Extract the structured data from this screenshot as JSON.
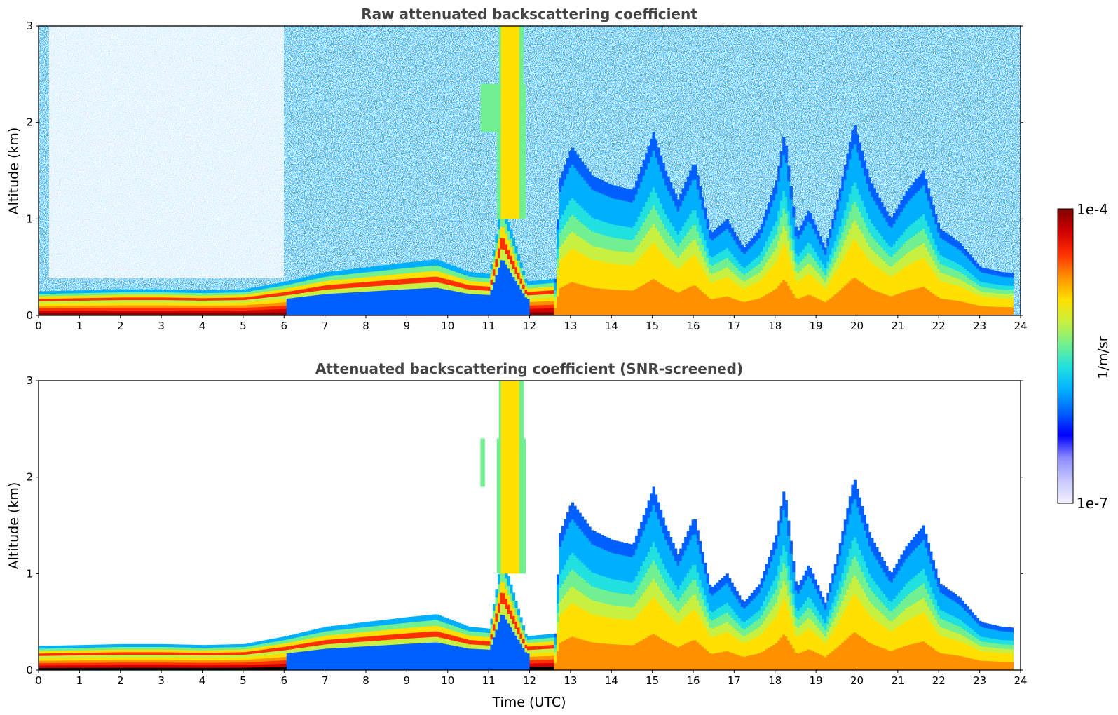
{
  "colors": {
    "colormap": [
      "#f0f0ff",
      "#c8c8ff",
      "#8c8cff",
      "#0000ff",
      "#0060ff",
      "#00b0ff",
      "#20e0e0",
      "#70f090",
      "#c8f040",
      "#ffe000",
      "#ff9000",
      "#ff3000",
      "#d00000",
      "#800000"
    ],
    "screened_saturation": "#000000"
  },
  "chart_data": [
    {
      "type": "heatmap",
      "title": "Raw attenuated backscattering coefficient",
      "xlabel": "",
      "ylabel": "Altitude (km)",
      "xlim": [
        0,
        24
      ],
      "ylim": [
        0,
        3
      ],
      "xticks": [
        "0",
        "1",
        "2",
        "3",
        "4",
        "5",
        "6",
        "7",
        "8",
        "9",
        "10",
        "11",
        "12",
        "13",
        "14",
        "15",
        "16",
        "17",
        "18",
        "19",
        "20",
        "21",
        "22",
        "23",
        "24"
      ],
      "yticks": [
        "0",
        "1",
        "2",
        "3"
      ],
      "boundary_layer_top_km": {
        "time_utc": [
          0,
          1,
          2,
          3,
          4,
          5,
          6,
          7,
          8,
          9,
          9.7,
          10.5,
          11,
          11.3,
          11.9,
          12.6,
          12.7,
          13,
          13.5,
          14,
          14.5,
          15,
          15.3,
          15.6,
          16,
          16.4,
          16.8,
          17.2,
          17.6,
          18,
          18.2,
          18.5,
          18.8,
          19.2,
          19.5,
          19.9,
          20.3,
          20.8,
          21.2,
          21.6,
          22,
          22.5,
          23,
          23.5,
          23.8
        ],
        "altitude_km": [
          0.25,
          0.26,
          0.27,
          0.27,
          0.26,
          0.27,
          0.35,
          0.45,
          0.5,
          0.55,
          0.58,
          0.45,
          0.43,
          1.2,
          0.35,
          0.38,
          1.4,
          1.75,
          1.45,
          1.35,
          1.3,
          1.9,
          1.5,
          1.2,
          1.6,
          0.85,
          1.0,
          0.7,
          0.9,
          1.4,
          1.9,
          0.85,
          1.1,
          0.7,
          1.2,
          2.0,
          1.4,
          1.0,
          1.3,
          1.5,
          0.9,
          0.75,
          0.5,
          0.45,
          0.44
        ]
      },
      "colorbar": {
        "label": "1/m/sr",
        "min_label": "1e-7",
        "max_label": "1e-4",
        "scale": "log"
      }
    },
    {
      "type": "heatmap",
      "title": "Attenuated backscattering coefficient (SNR-screened)",
      "xlabel": "Time (UTC)",
      "ylabel": "Altitude (km)",
      "xlim": [
        0,
        24
      ],
      "ylim": [
        0,
        3
      ],
      "xticks": [
        "0",
        "1",
        "2",
        "3",
        "4",
        "5",
        "6",
        "7",
        "8",
        "9",
        "10",
        "11",
        "12",
        "13",
        "14",
        "15",
        "16",
        "17",
        "18",
        "19",
        "20",
        "21",
        "22",
        "23",
        "24"
      ],
      "yticks": [
        "0",
        "1",
        "2",
        "3"
      ]
    }
  ]
}
